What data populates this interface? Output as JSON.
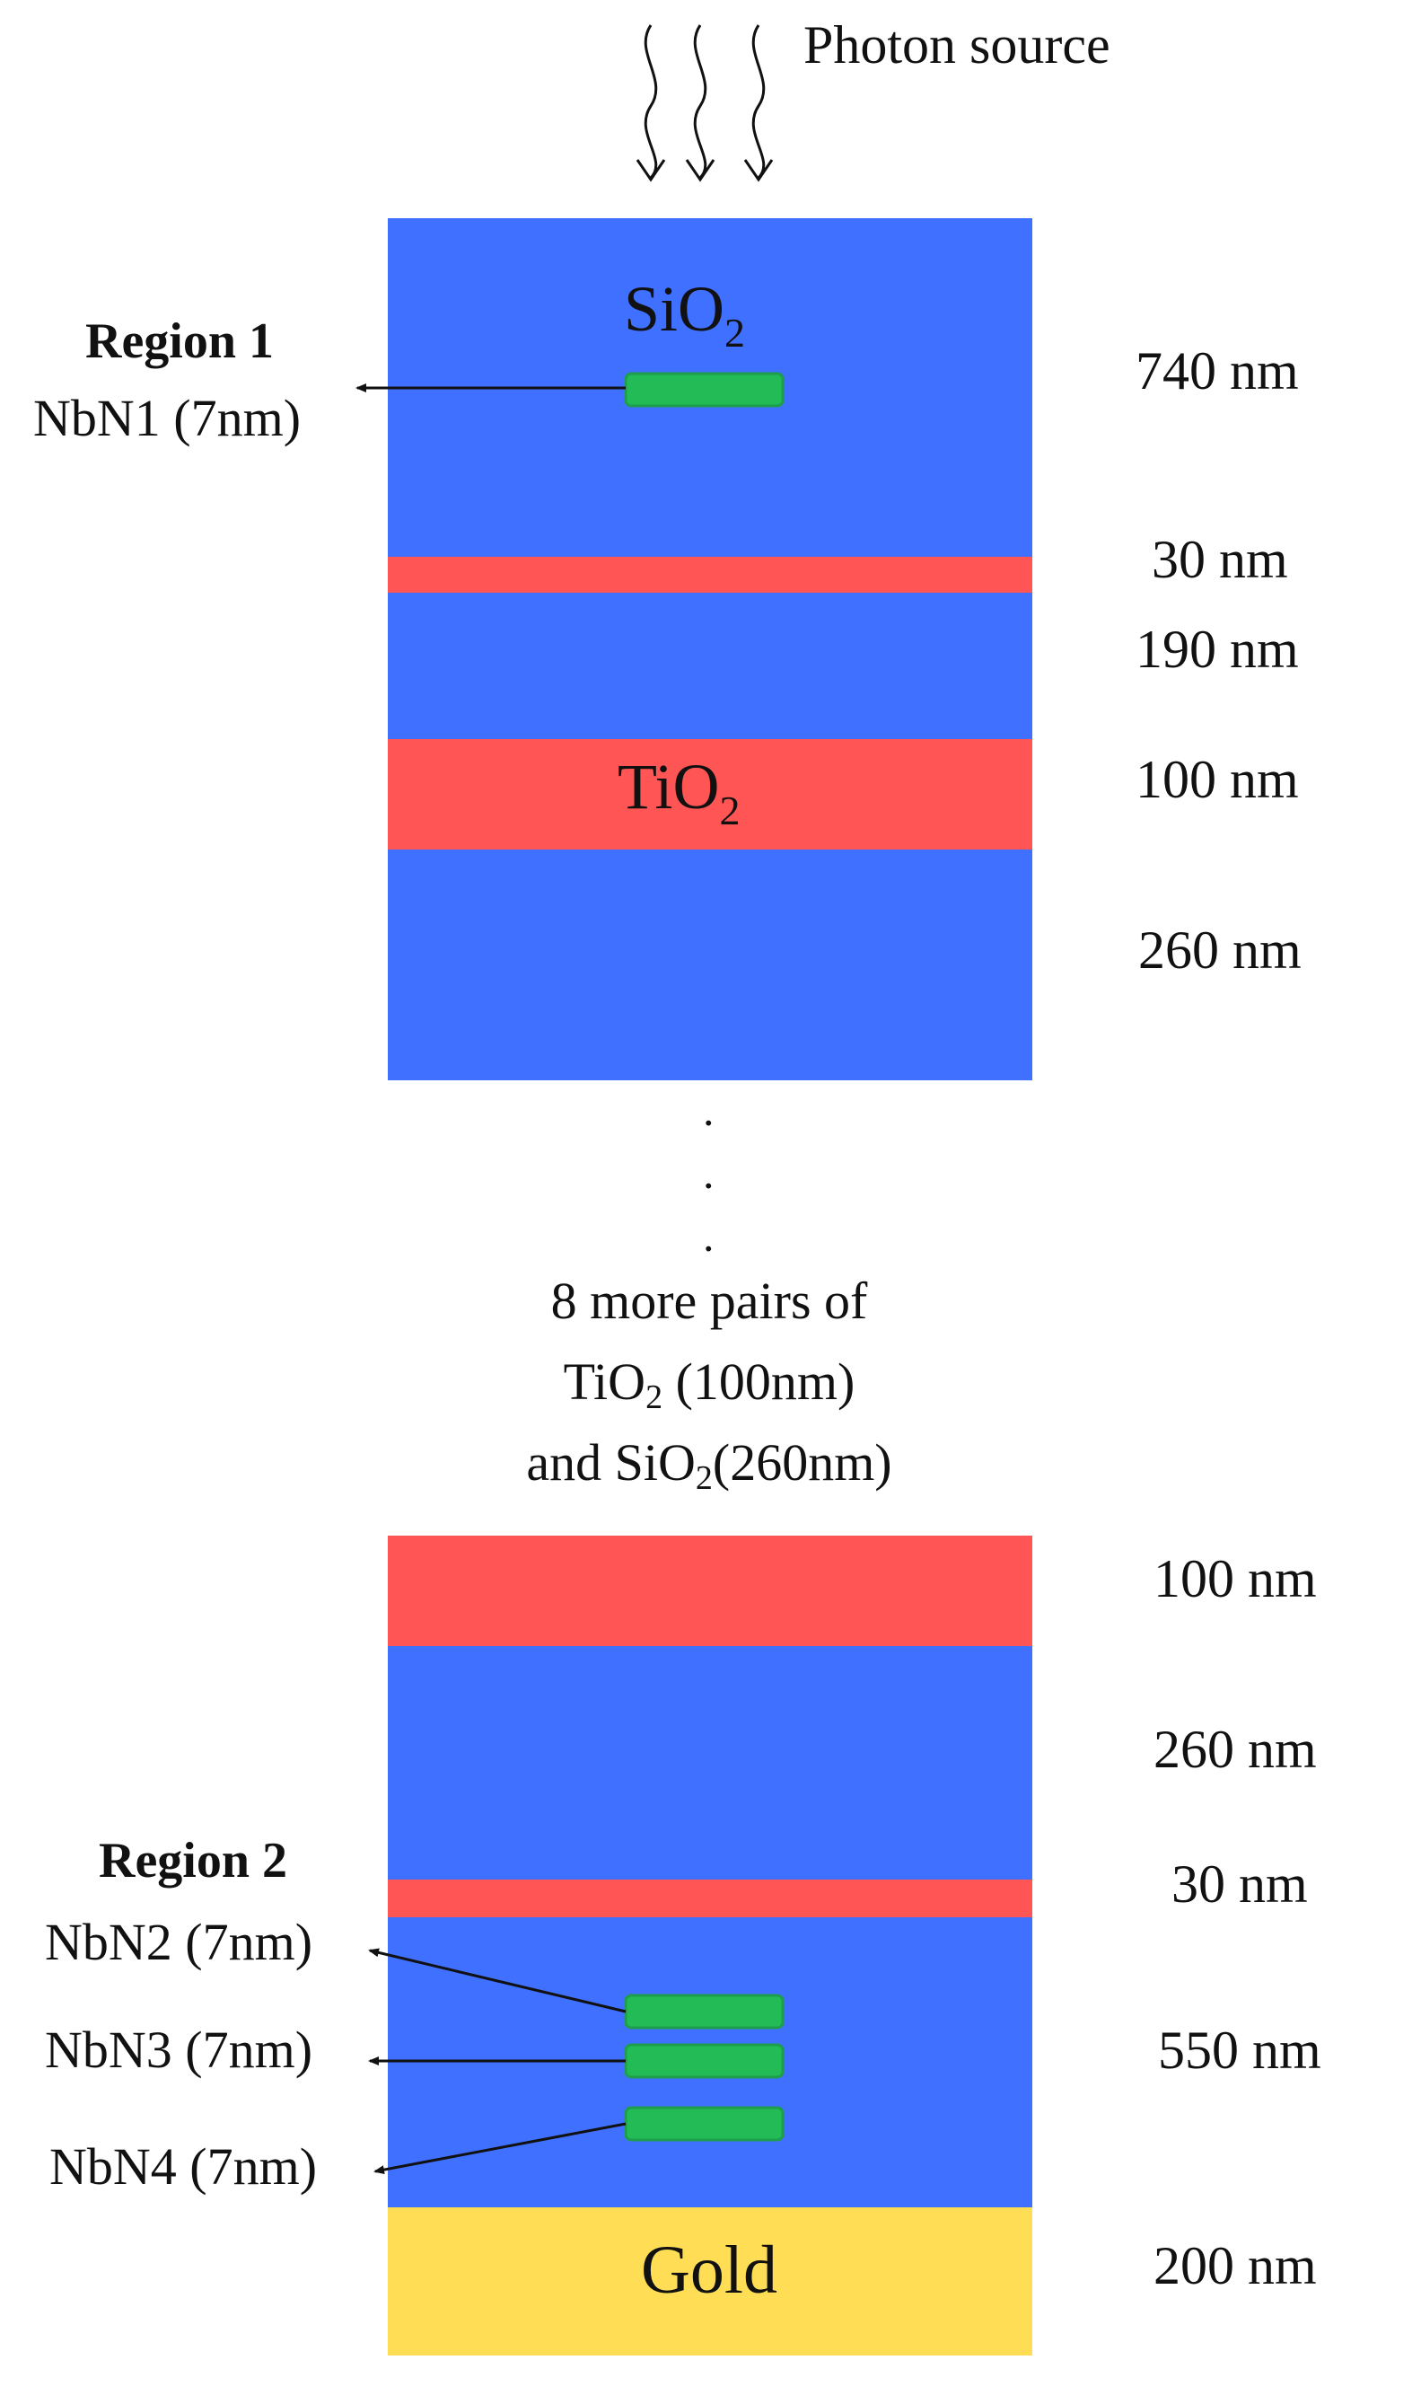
{
  "photon_source": "Photon source",
  "materials": {
    "sio2": {
      "base": "SiO",
      "sub": "2"
    },
    "tio2": {
      "base": "TiO",
      "sub": "2"
    },
    "gold": "Gold"
  },
  "colors": {
    "sio2": "#4070FF",
    "tio2": "#FF5555",
    "gold": "#FFDD55",
    "nbn": "#22BB55"
  },
  "region1": {
    "title": "Region 1",
    "nbn": "NbN1 (7nm)"
  },
  "region2": {
    "title": "Region 2",
    "nbn": [
      "NbN2 (7nm)",
      "NbN3 (7nm)",
      "NbN4 (7nm)"
    ]
  },
  "top_thicknesses": [
    "740 nm",
    "30 nm",
    "190 nm",
    "100 nm",
    "260 nm"
  ],
  "ellipsis": ".",
  "middle_text": {
    "line1": "8 more pairs of",
    "line2_base": "TiO",
    "line2_sub": "2",
    "line2_rest": " (100nm)",
    "line3_pre": "and SiO",
    "line3_sub": "2",
    "line3_rest": "(260nm)"
  },
  "bottom_thicknesses": [
    "100 nm",
    "260 nm",
    "30 nm",
    "550 nm",
    "200 nm"
  ]
}
